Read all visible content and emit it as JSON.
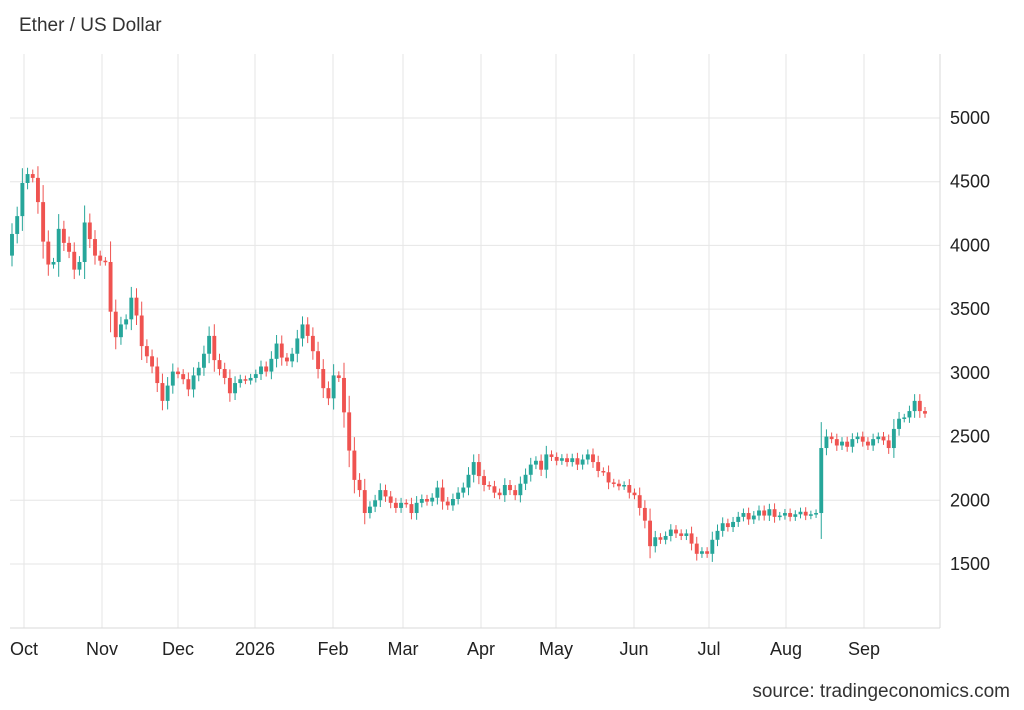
{
  "title": "Ether / US Dollar",
  "source": "source: tradingeconomics.com",
  "colors": {
    "up": "#26a69a",
    "down": "#ef5350",
    "grid": "#e6e6e6",
    "text": "#222222"
  },
  "chart_data": {
    "type": "candlestick",
    "title": "Ether / US Dollar",
    "xlabel": "",
    "ylabel": "",
    "y_ticks": [
      1500,
      2000,
      2500,
      3000,
      3500,
      4000,
      4500,
      5000
    ],
    "ylim": [
      1000,
      5500
    ],
    "y_axis_side": "right",
    "grid": true,
    "x_ticks": [
      "Oct",
      "Nov",
      "Dec",
      "2026",
      "Feb",
      "Mar",
      "Apr",
      "May",
      "Jun",
      "Jul",
      "Aug",
      "Sep"
    ],
    "series": [
      {
        "values": [
          [
            3920,
            4090
          ],
          [
            4090,
            4230
          ],
          [
            4230,
            4490
          ],
          [
            4490,
            4560
          ],
          [
            4560,
            4530
          ],
          [
            4530,
            4340
          ],
          [
            4340,
            4030
          ],
          [
            4030,
            3850
          ],
          [
            3850,
            3870
          ],
          [
            3870,
            4130
          ],
          [
            4130,
            4020
          ],
          [
            4020,
            3950
          ],
          [
            3950,
            3810
          ],
          [
            3810,
            3870
          ],
          [
            3870,
            4180
          ],
          [
            4180,
            4050
          ],
          [
            4050,
            3920
          ],
          [
            3920,
            3880
          ],
          [
            3880,
            3870
          ],
          [
            3870,
            3480
          ],
          [
            3480,
            3280
          ],
          [
            3280,
            3380
          ],
          [
            3380,
            3420
          ],
          [
            3420,
            3590
          ],
          [
            3590,
            3450
          ],
          [
            3450,
            3210
          ],
          [
            3210,
            3130
          ],
          [
            3130,
            3050
          ],
          [
            3050,
            2920
          ],
          [
            2920,
            2780
          ],
          [
            2780,
            2900
          ],
          [
            2900,
            3010
          ],
          [
            3010,
            2990
          ],
          [
            2990,
            2950
          ],
          [
            2950,
            2870
          ],
          [
            2870,
            2980
          ],
          [
            2980,
            3040
          ],
          [
            3040,
            3150
          ],
          [
            3150,
            3290
          ],
          [
            3290,
            3100
          ],
          [
            3100,
            3030
          ],
          [
            3030,
            2960
          ],
          [
            2960,
            2840
          ],
          [
            2840,
            2920
          ],
          [
            2920,
            2950
          ],
          [
            2950,
            2940
          ],
          [
            2940,
            2960
          ],
          [
            2960,
            2990
          ],
          [
            2990,
            3050
          ],
          [
            3050,
            3010
          ],
          [
            3010,
            3110
          ],
          [
            3110,
            3230
          ],
          [
            3230,
            3120
          ],
          [
            3120,
            3090
          ],
          [
            3090,
            3150
          ],
          [
            3150,
            3270
          ],
          [
            3270,
            3380
          ],
          [
            3380,
            3290
          ],
          [
            3290,
            3170
          ],
          [
            3170,
            3030
          ],
          [
            3030,
            2880
          ],
          [
            2880,
            2800
          ],
          [
            2800,
            2980
          ],
          [
            2980,
            2960
          ],
          [
            2960,
            2690
          ],
          [
            2690,
            2390
          ],
          [
            2390,
            2160
          ],
          [
            2160,
            2080
          ],
          [
            2080,
            1900
          ],
          [
            1900,
            1950
          ],
          [
            1950,
            2000
          ],
          [
            2000,
            2080
          ],
          [
            2080,
            2030
          ],
          [
            2030,
            1980
          ],
          [
            1980,
            1940
          ],
          [
            1940,
            1980
          ],
          [
            1980,
            1970
          ],
          [
            1970,
            1900
          ],
          [
            1900,
            1980
          ],
          [
            1980,
            2010
          ],
          [
            2010,
            1990
          ],
          [
            1990,
            2020
          ],
          [
            2020,
            2100
          ],
          [
            2100,
            1990
          ],
          [
            1990,
            1960
          ],
          [
            1960,
            2010
          ],
          [
            2010,
            2060
          ],
          [
            2060,
            2100
          ],
          [
            2100,
            2200
          ],
          [
            2200,
            2300
          ],
          [
            2300,
            2190
          ],
          [
            2190,
            2120
          ],
          [
            2120,
            2110
          ],
          [
            2110,
            2060
          ],
          [
            2060,
            2040
          ],
          [
            2040,
            2120
          ],
          [
            2120,
            2080
          ],
          [
            2080,
            2040
          ],
          [
            2040,
            2130
          ],
          [
            2130,
            2200
          ],
          [
            2200,
            2280
          ],
          [
            2280,
            2310
          ],
          [
            2310,
            2240
          ],
          [
            2240,
            2360
          ],
          [
            2360,
            2340
          ],
          [
            2340,
            2310
          ],
          [
            2310,
            2330
          ],
          [
            2330,
            2300
          ],
          [
            2300,
            2330
          ],
          [
            2330,
            2280
          ],
          [
            2280,
            2320
          ],
          [
            2320,
            2360
          ],
          [
            2360,
            2300
          ],
          [
            2300,
            2230
          ],
          [
            2230,
            2220
          ],
          [
            2220,
            2140
          ],
          [
            2140,
            2130
          ],
          [
            2130,
            2110
          ],
          [
            2110,
            2120
          ],
          [
            2120,
            2060
          ],
          [
            2060,
            2040
          ],
          [
            2040,
            1940
          ],
          [
            1940,
            1840
          ],
          [
            1840,
            1640
          ],
          [
            1640,
            1710
          ],
          [
            1710,
            1690
          ],
          [
            1690,
            1720
          ],
          [
            1720,
            1770
          ],
          [
            1770,
            1740
          ],
          [
            1740,
            1720
          ],
          [
            1720,
            1740
          ],
          [
            1740,
            1660
          ],
          [
            1660,
            1580
          ],
          [
            1580,
            1600
          ],
          [
            1600,
            1580
          ],
          [
            1580,
            1690
          ],
          [
            1690,
            1760
          ],
          [
            1760,
            1820
          ],
          [
            1820,
            1790
          ],
          [
            1790,
            1830
          ],
          [
            1830,
            1870
          ],
          [
            1870,
            1900
          ],
          [
            1900,
            1850
          ],
          [
            1850,
            1880
          ],
          [
            1880,
            1920
          ],
          [
            1920,
            1880
          ],
          [
            1880,
            1930
          ],
          [
            1930,
            1870
          ],
          [
            1870,
            1880
          ],
          [
            1880,
            1900
          ],
          [
            1900,
            1870
          ],
          [
            1870,
            1890
          ],
          [
            1890,
            1910
          ],
          [
            1910,
            1880
          ],
          [
            1880,
            1890
          ],
          [
            1890,
            1900
          ],
          [
            1900,
            2410
          ],
          [
            2410,
            2500
          ],
          [
            2500,
            2480
          ],
          [
            2480,
            2430
          ],
          [
            2430,
            2460
          ],
          [
            2460,
            2420
          ],
          [
            2420,
            2480
          ],
          [
            2480,
            2500
          ],
          [
            2500,
            2460
          ],
          [
            2460,
            2430
          ],
          [
            2430,
            2480
          ],
          [
            2480,
            2500
          ],
          [
            2500,
            2470
          ],
          [
            2470,
            2410
          ],
          [
            2410,
            2560
          ],
          [
            2560,
            2640
          ],
          [
            2640,
            2650
          ],
          [
            2650,
            2700
          ],
          [
            2700,
            2780
          ],
          [
            2780,
            2700
          ],
          [
            2700,
            2680
          ]
        ]
      }
    ]
  }
}
